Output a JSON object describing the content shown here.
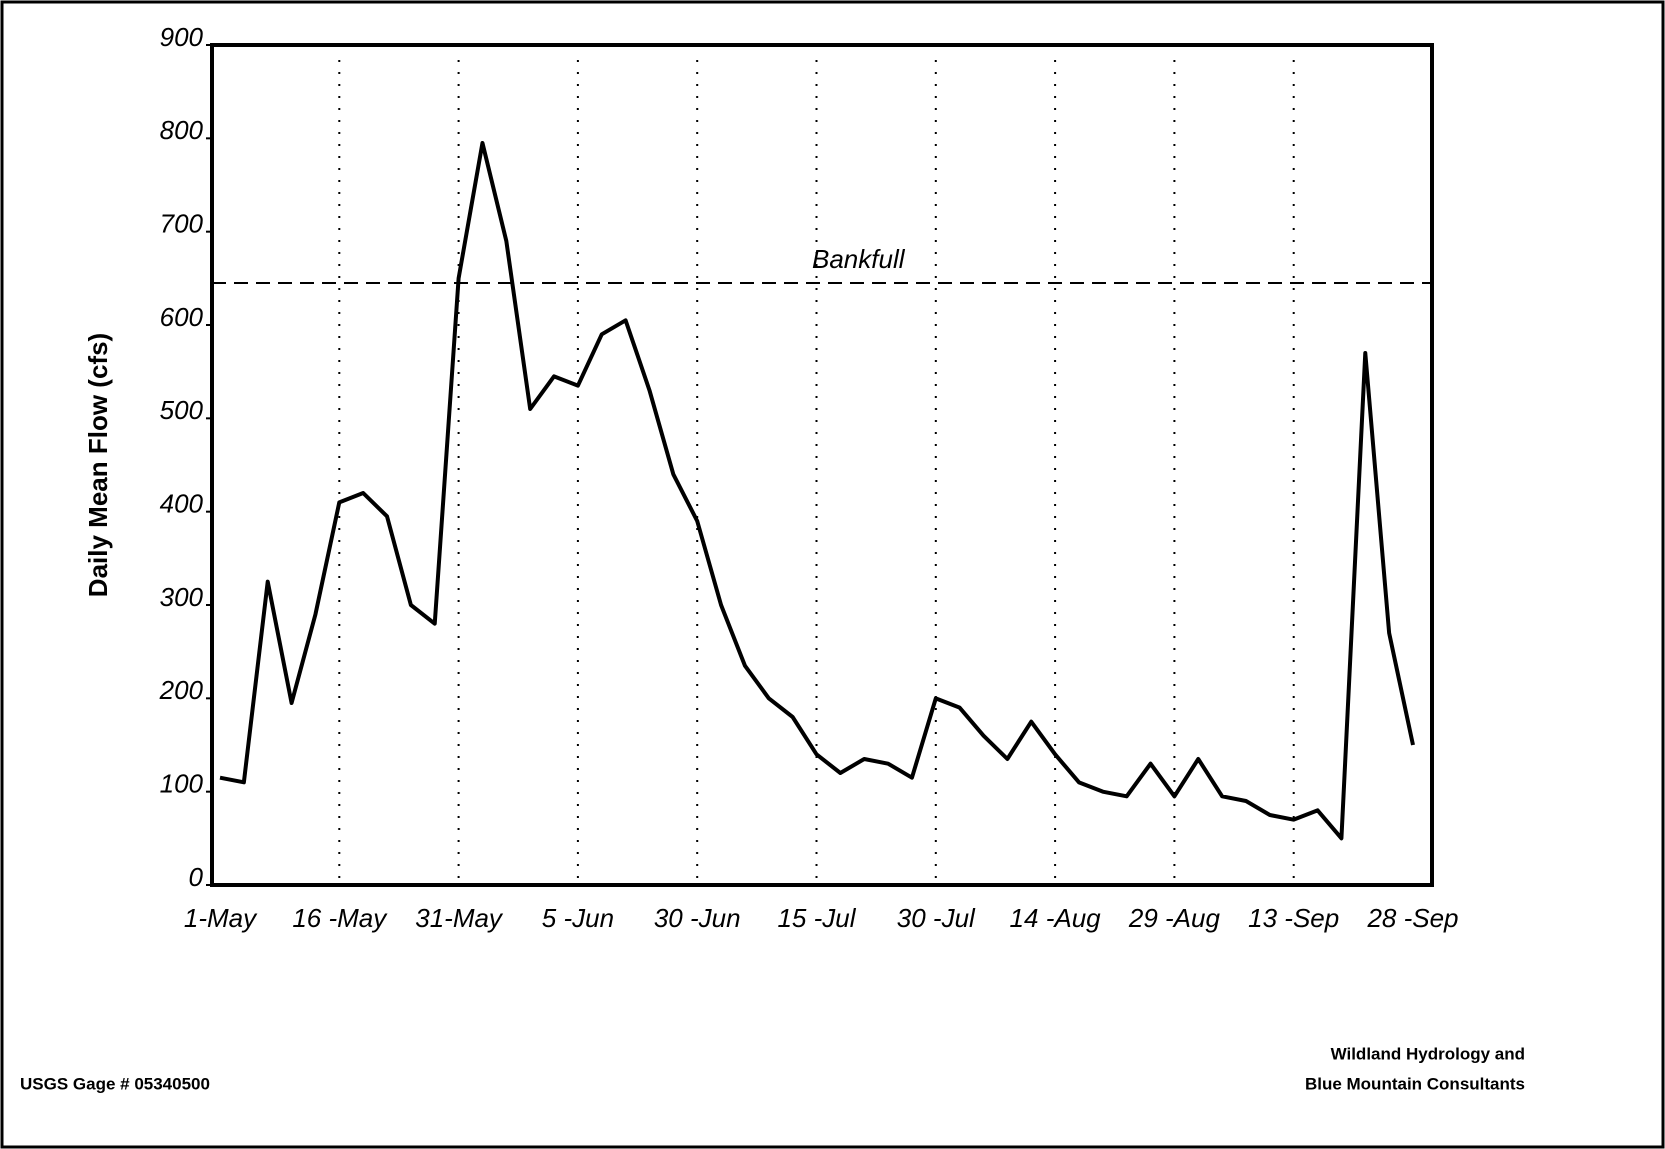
{
  "chart_data": {
    "type": "line",
    "ylabel": "Daily Mean Flow (cfs)",
    "categories": [
      "1-May",
      null,
      null,
      null,
      null,
      "16 -May",
      null,
      null,
      null,
      null,
      "31-May",
      null,
      null,
      null,
      null,
      "5 -Jun",
      null,
      null,
      null,
      null,
      "30 -Jun",
      null,
      null,
      null,
      null,
      "15 -Jul",
      null,
      null,
      null,
      null,
      "30 -Jul",
      null,
      null,
      null,
      null,
      "14 -Aug",
      null,
      null,
      null,
      null,
      "29 -Aug",
      null,
      null,
      null,
      null,
      "13 -Sep",
      null,
      null,
      null,
      null,
      "28 -Sep"
    ],
    "series": [
      {
        "color": "#000000",
        "values": [
          115,
          110,
          325,
          195,
          290,
          410,
          420,
          395,
          300,
          280,
          650,
          795,
          690,
          510,
          545,
          535,
          590,
          605,
          530,
          440,
          390,
          300,
          235,
          200,
          180,
          140,
          120,
          135,
          130,
          115,
          200,
          190,
          160,
          135,
          175,
          140,
          110,
          100,
          95,
          130,
          95,
          135,
          95,
          90,
          75,
          70,
          80,
          50,
          570,
          270,
          150
        ]
      }
    ],
    "reference_line": {
      "value": 645,
      "label": "Bankfull"
    },
    "ylim": [
      0,
      900
    ],
    "yticks": [
      0,
      100,
      200,
      300,
      400,
      500,
      600,
      700,
      800,
      900
    ],
    "footer_left": "USGS Gage # 05340500",
    "footer_right": [
      "Wildland Hydrology and",
      "Blue Mountain Consultants"
    ]
  }
}
